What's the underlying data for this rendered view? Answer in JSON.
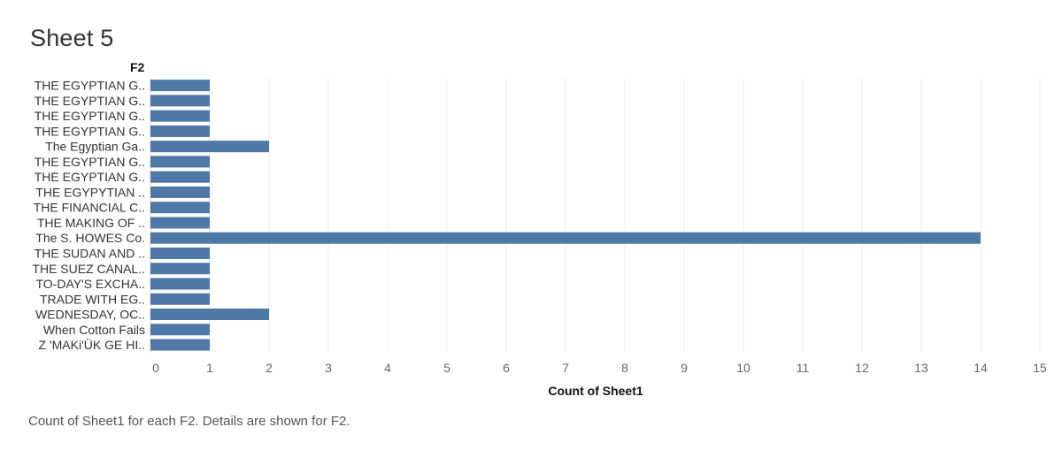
{
  "sheet": {
    "title": "Sheet 5",
    "caption": "Count of Sheet1 for each F2.  Details are shown for F2."
  },
  "chart_data": {
    "type": "bar",
    "orientation": "horizontal",
    "row_header": "F2",
    "xlabel": "Count of Sheet1",
    "xlim": [
      0,
      15
    ],
    "x_ticks": [
      0,
      1,
      2,
      3,
      4,
      5,
      6,
      7,
      8,
      9,
      10,
      11,
      12,
      13,
      14,
      15
    ],
    "grid": true,
    "bar_color": "#4e79a7",
    "categories": [
      "THE EGYPTIAN G..",
      "THE EGYPTIAN G..",
      "THE EGYPTIAN G..",
      "THE EGYPTIAN G..",
      "The Egyptian Ga..",
      "THE EGYPTIAN G..",
      "THE EGYPTIAN G..",
      "THE EGYPYTIAN ..",
      "THE FINANCIAL C..",
      "THE MAKING OF ..",
      "The S. HOWES Co.",
      "THE SUDAN AND ..",
      "THE SUEZ CANAL..",
      "TO-DAY'S EXCHA..",
      "TRADE WITH EG..",
      "WEDNESDAY, OC..",
      "When Cotton Fails",
      "Z 'MAKi'ÜK GE HI.."
    ],
    "values": [
      1,
      1,
      1,
      1,
      2,
      1,
      1,
      1,
      1,
      1,
      14,
      1,
      1,
      1,
      1,
      2,
      1,
      1
    ]
  }
}
